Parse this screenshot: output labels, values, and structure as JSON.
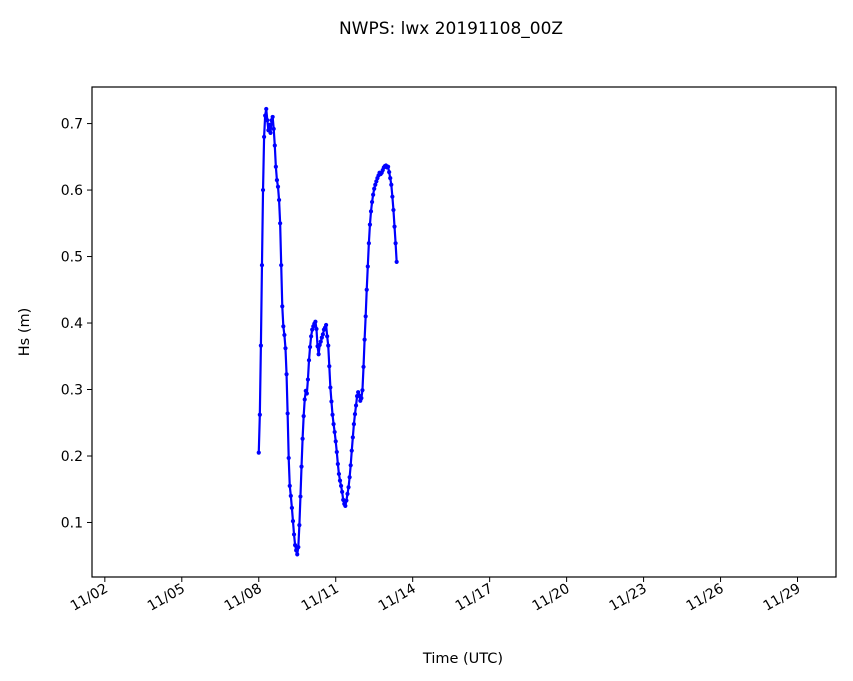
{
  "chart_data": {
    "type": "line",
    "title": "NWPS: lwx 20191108_00Z",
    "xlabel": "Time (UTC)",
    "ylabel": "Hs (m)",
    "x_axis_kind": "date",
    "xlim": [
      "2019-11-01T12:00",
      "2019-11-30T12:00"
    ],
    "ylim": [
      0.018,
      0.755
    ],
    "x_ticks": [
      {
        "date": "2019-11-02T00:00",
        "label": "11/02"
      },
      {
        "date": "2019-11-05T00:00",
        "label": "11/05"
      },
      {
        "date": "2019-11-08T00:00",
        "label": "11/08"
      },
      {
        "date": "2019-11-11T00:00",
        "label": "11/11"
      },
      {
        "date": "2019-11-14T00:00",
        "label": "11/14"
      },
      {
        "date": "2019-11-17T00:00",
        "label": "11/17"
      },
      {
        "date": "2019-11-20T00:00",
        "label": "11/20"
      },
      {
        "date": "2019-11-23T00:00",
        "label": "11/23"
      },
      {
        "date": "2019-11-26T00:00",
        "label": "11/26"
      },
      {
        "date": "2019-11-29T00:00",
        "label": "11/29"
      }
    ],
    "y_ticks": [
      {
        "value": 0.1,
        "label": "0.1"
      },
      {
        "value": 0.2,
        "label": "0.2"
      },
      {
        "value": 0.3,
        "label": "0.3"
      },
      {
        "value": 0.4,
        "label": "0.4"
      },
      {
        "value": 0.5,
        "label": "0.5"
      },
      {
        "value": 0.6,
        "label": "0.6"
      },
      {
        "value": 0.7,
        "label": "0.7"
      }
    ],
    "grid": false,
    "legend": "none",
    "series": [
      {
        "color": "#0000ff",
        "marker": "dot",
        "points": [
          [
            "2019-11-08T00:00",
            0.205
          ],
          [
            "2019-11-08T01:00",
            0.262
          ],
          [
            "2019-11-08T02:00",
            0.366
          ],
          [
            "2019-11-08T03:00",
            0.487
          ],
          [
            "2019-11-08T04:00",
            0.6
          ],
          [
            "2019-11-08T05:00",
            0.68
          ],
          [
            "2019-11-08T06:00",
            0.712
          ],
          [
            "2019-11-08T07:00",
            0.722
          ],
          [
            "2019-11-08T08:00",
            0.705
          ],
          [
            "2019-11-08T09:00",
            0.69
          ],
          [
            "2019-11-08T10:00",
            0.698
          ],
          [
            "2019-11-08T11:00",
            0.686
          ],
          [
            "2019-11-08T12:00",
            0.705
          ],
          [
            "2019-11-08T13:00",
            0.71
          ],
          [
            "2019-11-08T14:00",
            0.692
          ],
          [
            "2019-11-08T15:00",
            0.667
          ],
          [
            "2019-11-08T16:00",
            0.635
          ],
          [
            "2019-11-08T17:00",
            0.615
          ],
          [
            "2019-11-08T18:00",
            0.605
          ],
          [
            "2019-11-08T19:00",
            0.585
          ],
          [
            "2019-11-08T20:00",
            0.55
          ],
          [
            "2019-11-08T21:00",
            0.487
          ],
          [
            "2019-11-08T22:00",
            0.425
          ],
          [
            "2019-11-08T23:00",
            0.395
          ],
          [
            "2019-11-09T00:00",
            0.382
          ],
          [
            "2019-11-09T01:00",
            0.362
          ],
          [
            "2019-11-09T02:00",
            0.323
          ],
          [
            "2019-11-09T03:00",
            0.264
          ],
          [
            "2019-11-09T04:00",
            0.197
          ],
          [
            "2019-11-09T05:00",
            0.155
          ],
          [
            "2019-11-09T06:00",
            0.14
          ],
          [
            "2019-11-09T07:00",
            0.122
          ],
          [
            "2019-11-09T08:00",
            0.102
          ],
          [
            "2019-11-09T09:00",
            0.082
          ],
          [
            "2019-11-09T10:00",
            0.066
          ],
          [
            "2019-11-09T11:00",
            0.058
          ],
          [
            "2019-11-09T12:00",
            0.052
          ],
          [
            "2019-11-09T13:00",
            0.063
          ],
          [
            "2019-11-09T14:00",
            0.096
          ],
          [
            "2019-11-09T15:00",
            0.139
          ],
          [
            "2019-11-09T16:00",
            0.184
          ],
          [
            "2019-11-09T17:00",
            0.226
          ],
          [
            "2019-11-09T18:00",
            0.26
          ],
          [
            "2019-11-09T19:00",
            0.285
          ],
          [
            "2019-11-09T20:00",
            0.298
          ],
          [
            "2019-11-09T21:00",
            0.294
          ],
          [
            "2019-11-09T22:00",
            0.315
          ],
          [
            "2019-11-09T23:00",
            0.344
          ],
          [
            "2019-11-10T00:00",
            0.364
          ],
          [
            "2019-11-10T01:00",
            0.38
          ],
          [
            "2019-11-10T02:00",
            0.39
          ],
          [
            "2019-11-10T03:00",
            0.395
          ],
          [
            "2019-11-10T04:00",
            0.399
          ],
          [
            "2019-11-10T05:00",
            0.402
          ],
          [
            "2019-11-10T06:00",
            0.391
          ],
          [
            "2019-11-10T07:00",
            0.365
          ],
          [
            "2019-11-10T08:00",
            0.353
          ],
          [
            "2019-11-10T09:00",
            0.367
          ],
          [
            "2019-11-10T10:00",
            0.372
          ],
          [
            "2019-11-10T11:00",
            0.378
          ],
          [
            "2019-11-10T12:00",
            0.383
          ],
          [
            "2019-11-10T13:00",
            0.39
          ],
          [
            "2019-11-10T14:00",
            0.393
          ],
          [
            "2019-11-10T15:00",
            0.397
          ],
          [
            "2019-11-10T16:00",
            0.38
          ],
          [
            "2019-11-10T17:00",
            0.366
          ],
          [
            "2019-11-10T18:00",
            0.335
          ],
          [
            "2019-11-10T19:00",
            0.303
          ],
          [
            "2019-11-10T20:00",
            0.282
          ],
          [
            "2019-11-10T21:00",
            0.262
          ],
          [
            "2019-11-10T22:00",
            0.248
          ],
          [
            "2019-11-10T23:00",
            0.236
          ],
          [
            "2019-11-11T00:00",
            0.222
          ],
          [
            "2019-11-11T01:00",
            0.206
          ],
          [
            "2019-11-11T02:00",
            0.188
          ],
          [
            "2019-11-11T03:00",
            0.173
          ],
          [
            "2019-11-11T04:00",
            0.163
          ],
          [
            "2019-11-11T05:00",
            0.155
          ],
          [
            "2019-11-11T06:00",
            0.146
          ],
          [
            "2019-11-11T07:00",
            0.134
          ],
          [
            "2019-11-11T08:00",
            0.128
          ],
          [
            "2019-11-11T09:00",
            0.125
          ],
          [
            "2019-11-11T10:00",
            0.133
          ],
          [
            "2019-11-11T11:00",
            0.143
          ],
          [
            "2019-11-11T12:00",
            0.153
          ],
          [
            "2019-11-11T13:00",
            0.168
          ],
          [
            "2019-11-11T14:00",
            0.186
          ],
          [
            "2019-11-11T15:00",
            0.208
          ],
          [
            "2019-11-11T16:00",
            0.228
          ],
          [
            "2019-11-11T17:00",
            0.248
          ],
          [
            "2019-11-11T18:00",
            0.263
          ],
          [
            "2019-11-11T19:00",
            0.276
          ],
          [
            "2019-11-11T20:00",
            0.29
          ],
          [
            "2019-11-11T21:00",
            0.296
          ],
          [
            "2019-11-11T22:00",
            0.291
          ],
          [
            "2019-11-11T23:00",
            0.283
          ],
          [
            "2019-11-12T00:00",
            0.287
          ],
          [
            "2019-11-12T01:00",
            0.299
          ],
          [
            "2019-11-12T02:00",
            0.334
          ],
          [
            "2019-11-12T03:00",
            0.375
          ],
          [
            "2019-11-12T04:00",
            0.41
          ],
          [
            "2019-11-12T05:00",
            0.45
          ],
          [
            "2019-11-12T06:00",
            0.485
          ],
          [
            "2019-11-12T07:00",
            0.52
          ],
          [
            "2019-11-12T08:00",
            0.548
          ],
          [
            "2019-11-12T09:00",
            0.568
          ],
          [
            "2019-11-12T10:00",
            0.582
          ],
          [
            "2019-11-12T11:00",
            0.593
          ],
          [
            "2019-11-12T12:00",
            0.602
          ],
          [
            "2019-11-12T13:00",
            0.608
          ],
          [
            "2019-11-12T14:00",
            0.613
          ],
          [
            "2019-11-12T15:00",
            0.618
          ],
          [
            "2019-11-12T16:00",
            0.622
          ],
          [
            "2019-11-12T17:00",
            0.626
          ],
          [
            "2019-11-12T18:00",
            0.624
          ],
          [
            "2019-11-12T19:00",
            0.626
          ],
          [
            "2019-11-12T20:00",
            0.63
          ],
          [
            "2019-11-12T21:00",
            0.634
          ],
          [
            "2019-11-12T22:00",
            0.636
          ],
          [
            "2019-11-12T23:00",
            0.637
          ],
          [
            "2019-11-13T00:00",
            0.634
          ],
          [
            "2019-11-13T01:00",
            0.635
          ],
          [
            "2019-11-13T02:00",
            0.627
          ],
          [
            "2019-11-13T03:00",
            0.618
          ],
          [
            "2019-11-13T04:00",
            0.608
          ],
          [
            "2019-11-13T05:00",
            0.59
          ],
          [
            "2019-11-13T06:00",
            0.57
          ],
          [
            "2019-11-13T07:00",
            0.545
          ],
          [
            "2019-11-13T08:00",
            0.52
          ],
          [
            "2019-11-13T09:00",
            0.492
          ]
        ]
      }
    ]
  }
}
